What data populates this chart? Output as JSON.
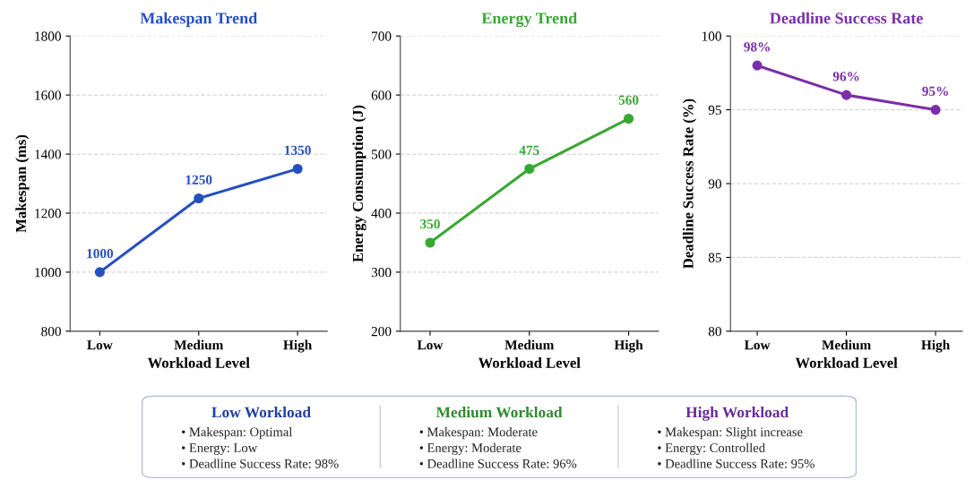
{
  "chart_data": [
    {
      "type": "line",
      "title": "Makespan Trend",
      "xlabel": "Workload Level",
      "ylabel": "Makespan (ms)",
      "categories": [
        "Low",
        "Medium",
        "High"
      ],
      "series": [
        {
          "color": "#2450c0",
          "values": [
            1000,
            1250,
            1350
          ]
        }
      ],
      "ylim": [
        800,
        1800
      ],
      "yticks": [
        800,
        1000,
        1200,
        1400,
        1600,
        1800
      ],
      "grid": "y",
      "marker": "circle",
      "line_style": "solid",
      "data_labels": true
    },
    {
      "type": "line",
      "title": "Energy Trend",
      "xlabel": "Workload Level",
      "ylabel": "Energy Consumption (J)",
      "categories": [
        "Low",
        "Medium",
        "High"
      ],
      "series": [
        {
          "color": "#37a832",
          "values": [
            350,
            475,
            560
          ]
        }
      ],
      "ylim": [
        200,
        700
      ],
      "yticks": [
        200,
        300,
        400,
        500,
        600,
        700
      ],
      "grid": "y",
      "marker": "circle",
      "line_style": "solid",
      "data_labels": true
    },
    {
      "type": "line",
      "title": "Deadline Success Rate",
      "xlabel": "Workload Level",
      "ylabel": "Deadline Success Rate (%)",
      "categories": [
        "Low",
        "Medium",
        "High"
      ],
      "series": [
        {
          "color": "#7a2fa8",
          "values": [
            98,
            96,
            95
          ],
          "value_labels": [
            "98%",
            "96%",
            "95%"
          ]
        }
      ],
      "ylim": [
        80,
        100
      ],
      "yticks": [
        80,
        85,
        90,
        95,
        100
      ],
      "grid": "y",
      "marker": "circle",
      "line_style": "solid"
    },
    {
      "type": "other",
      "categories": [
        "Low Workload",
        "Medium Workload",
        "High Workload"
      ],
      "colors": [
        "#1f3fa0",
        "#2e8b2e",
        "#6a2a9a"
      ],
      "annotations": [
        "• Makespan: Optimal",
        "• Energy: Low",
        "• Deadline Success Rate: 98%",
        "• Makespan: Moderate",
        "• Energy: Moderate",
        "• Deadline Success Rate: 96%",
        "• Makespan: Slight increase",
        "• Energy: Controlled",
        "• Deadline Success Rate: 95%"
      ]
    }
  ]
}
